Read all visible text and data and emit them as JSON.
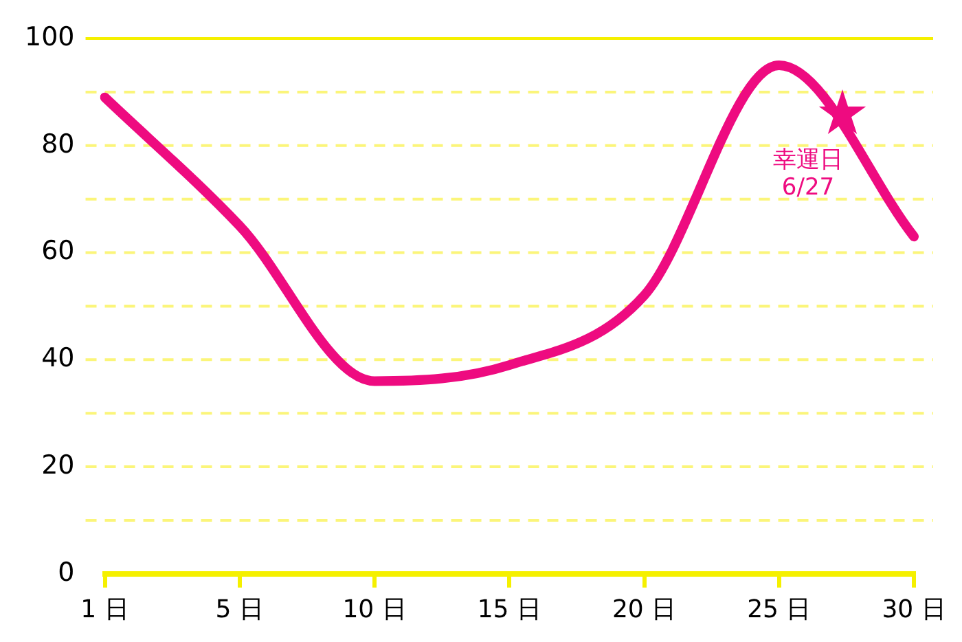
{
  "chart_data": {
    "type": "line",
    "categories": [
      "1 日",
      "5 日",
      "10 日",
      "15 日",
      "20 日",
      "25 日",
      "30 日"
    ],
    "series": [
      {
        "color": "#ee0b80",
        "values": [
          89,
          65,
          36,
          39,
          52,
          95,
          63
        ]
      }
    ],
    "ylim": [
      0,
      100
    ],
    "yticks": [
      0,
      {
        "value": 10,
        "label": null
      },
      20,
      {
        "value": 30,
        "label": null
      },
      40,
      {
        "value": 50,
        "label": null
      },
      60,
      {
        "value": 70,
        "label": null
      },
      80,
      {
        "value": 90,
        "label": null
      },
      100
    ],
    "grid": "y",
    "legend": false,
    "marker": "none",
    "line_style": "solid",
    "annotations": [
      "幸運日\n6/27"
    ]
  }
}
